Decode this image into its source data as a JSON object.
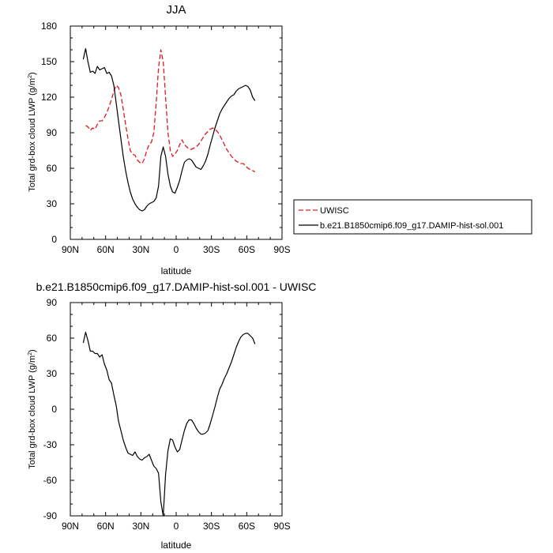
{
  "chart_data": [
    {
      "type": "line",
      "title": "JJA",
      "xlabel": "latitude",
      "ylabel_main": "Total grd-box cloud LWP (g/m",
      "ylabel_sup": "2",
      "ylabel_close": ")",
      "xlim": [
        90,
        -90
      ],
      "ylim": [
        0,
        180
      ],
      "x_ticks": [
        90,
        60,
        30,
        0,
        -30,
        -60,
        -90
      ],
      "x_tick_labels": [
        "90N",
        "60N",
        "30N",
        "0",
        "30S",
        "60S",
        "90S"
      ],
      "y_ticks": [
        0,
        30,
        60,
        90,
        120,
        150,
        180
      ],
      "y_tick_labels": [
        "0",
        "30",
        "60",
        "90",
        "120",
        "150",
        "180"
      ],
      "legend_position": "right",
      "series": [
        {
          "name": "UWISC",
          "color": "#e31a1c",
          "dash": "dashed",
          "x": [
            77,
            75,
            73,
            71,
            69,
            67,
            65,
            63,
            61,
            59,
            57,
            55,
            53,
            51,
            49,
            47,
            45,
            43,
            41,
            39,
            37,
            35,
            33,
            31,
            29,
            27,
            25,
            23,
            21,
            19,
            17,
            15,
            13,
            11,
            9,
            7,
            5,
            3,
            1,
            -1,
            -3,
            -5,
            -7,
            -9,
            -11,
            -13,
            -15,
            -17,
            -19,
            -21,
            -23,
            -25,
            -27,
            -29,
            -31,
            -33,
            -35,
            -37,
            -39,
            -41,
            -43,
            -45,
            -47,
            -49,
            -51,
            -53,
            -55,
            -57,
            -59,
            -61,
            -63,
            -65,
            -67
          ],
          "y": [
            96,
            95,
            92,
            94,
            93,
            97,
            100,
            100,
            103,
            107,
            112,
            118,
            125,
            130,
            128,
            122,
            110,
            97,
            85,
            75,
            72,
            71,
            67,
            65,
            64,
            68,
            75,
            80,
            82,
            90,
            115,
            145,
            160,
            150,
            120,
            90,
            75,
            70,
            72,
            75,
            80,
            84,
            80,
            78,
            76,
            76,
            77,
            78,
            80,
            83,
            86,
            89,
            91,
            93,
            94,
            93,
            91,
            88,
            84,
            80,
            76,
            73,
            70,
            68,
            66,
            65,
            64,
            64,
            62,
            60,
            59,
            58,
            57
          ]
        },
        {
          "name": "b.e21.B1850cmip6.f09_g17.DAMIP-hist-sol.001",
          "color": "#000000",
          "dash": "solid",
          "x": [
            79,
            77,
            75,
            73,
            71,
            69,
            67,
            65,
            63,
            61,
            59,
            57,
            55,
            53,
            51,
            49,
            47,
            45,
            43,
            41,
            39,
            37,
            35,
            33,
            31,
            29,
            27,
            25,
            23,
            21,
            19,
            17,
            15,
            13,
            11,
            9,
            7,
            5,
            3,
            1,
            -1,
            -3,
            -5,
            -7,
            -9,
            -11,
            -13,
            -15,
            -17,
            -19,
            -21,
            -23,
            -25,
            -27,
            -29,
            -31,
            -33,
            -35,
            -37,
            -39,
            -41,
            -43,
            -45,
            -47,
            -49,
            -51,
            -53,
            -55,
            -57,
            -59,
            -61,
            -63,
            -65,
            -67
          ],
          "y": [
            152,
            161,
            150,
            141,
            142,
            140,
            146,
            143,
            144,
            145,
            140,
            141,
            138,
            130,
            115,
            100,
            85,
            70,
            58,
            48,
            40,
            34,
            30,
            27,
            25,
            24,
            25,
            28,
            30,
            31,
            32,
            35,
            45,
            70,
            78,
            70,
            55,
            45,
            40,
            39,
            44,
            50,
            58,
            65,
            67,
            68,
            67,
            64,
            61,
            60,
            59,
            62,
            66,
            72,
            80,
            87,
            94,
            100,
            106,
            110,
            113,
            116,
            119,
            121,
            122,
            125,
            127,
            128,
            129,
            130,
            129,
            126,
            120,
            117
          ]
        }
      ]
    },
    {
      "type": "line",
      "title": "b.e21.B1850cmip6.f09_g17.DAMIP-hist-sol.001 - UWISC",
      "xlabel": "latitude",
      "ylabel_main": "Total grd-box cloud LWP (g/m",
      "ylabel_sup": "2",
      "ylabel_close": ")",
      "xlim": [
        90,
        -90
      ],
      "ylim": [
        -90,
        90
      ],
      "x_ticks": [
        90,
        60,
        30,
        0,
        -30,
        -60,
        -90
      ],
      "x_tick_labels": [
        "90N",
        "60N",
        "30N",
        "0",
        "30S",
        "60S",
        "90S"
      ],
      "y_ticks": [
        -90,
        -60,
        -30,
        0,
        30,
        60,
        90
      ],
      "y_tick_labels": [
        "-90",
        "-60",
        "-30",
        "0",
        "30",
        "60",
        "90"
      ],
      "series": [
        {
          "color": "#000000",
          "dash": "solid",
          "x": [
            79,
            77,
            75,
            73,
            71,
            69,
            67,
            65,
            63,
            61,
            59,
            57,
            55,
            53,
            51,
            49,
            47,
            45,
            43,
            41,
            39,
            37,
            35,
            33,
            31,
            29,
            27,
            25,
            23,
            21,
            19,
            17,
            15,
            13,
            11,
            9,
            7,
            5,
            3,
            1,
            -1,
            -3,
            -5,
            -7,
            -9,
            -11,
            -13,
            -15,
            -17,
            -19,
            -21,
            -23,
            -25,
            -27,
            -29,
            -31,
            -33,
            -35,
            -37,
            -39,
            -41,
            -43,
            -45,
            -47,
            -49,
            -51,
            -53,
            -55,
            -57,
            -59,
            -61,
            -63,
            -65,
            -67
          ],
          "y": [
            56,
            65,
            58,
            49,
            49,
            47,
            47,
            44,
            46,
            38,
            33,
            25,
            22,
            12,
            3,
            -10,
            -18,
            -26,
            -32,
            -37,
            -38,
            -39,
            -36,
            -40,
            -42,
            -43,
            -41,
            -40,
            -38,
            -43,
            -48,
            -50,
            -54,
            -78,
            -90,
            -55,
            -35,
            -25,
            -26,
            -32,
            -36,
            -34,
            -26,
            -18,
            -12,
            -9,
            -9,
            -12,
            -16,
            -19,
            -21,
            -21,
            -20,
            -18,
            -12,
            -5,
            2,
            10,
            17,
            21,
            26,
            30,
            35,
            40,
            46,
            52,
            57,
            61,
            63,
            64,
            64,
            62,
            60,
            55
          ]
        }
      ]
    }
  ]
}
